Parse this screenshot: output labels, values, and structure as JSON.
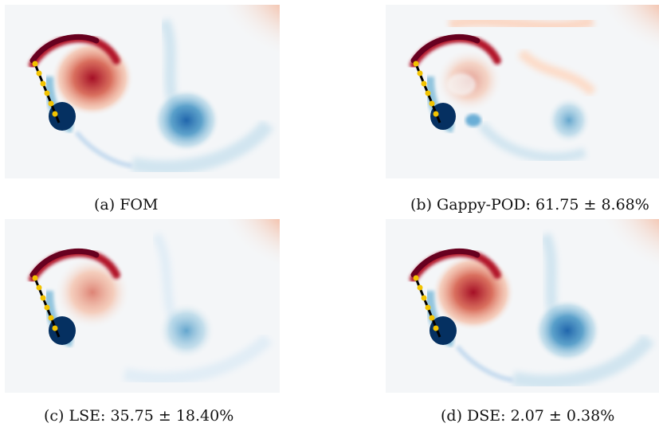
{
  "colors": {
    "positive": "#b2182b",
    "positive_dark": "#67001f",
    "negative": "#2166ac",
    "negative_dark": "#053061",
    "background": "#f7f7f7",
    "sensor": "#f2c300",
    "plate": "#000000"
  },
  "panels": [
    {
      "id": "a",
      "caption": "(a) FOM"
    },
    {
      "id": "b",
      "caption": "(b) Gappy-POD: 61.75 ± 8.68%"
    },
    {
      "id": "c",
      "caption": "(c) LSE: 35.75 ± 18.40%"
    },
    {
      "id": "d",
      "caption": "(d) DSE: 2.07 ± 0.38%"
    }
  ]
}
